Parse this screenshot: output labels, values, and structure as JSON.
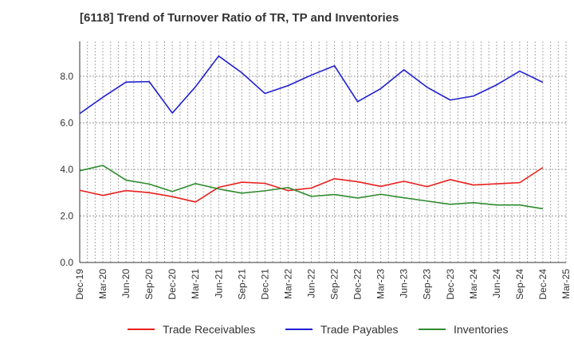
{
  "chart_data": {
    "type": "line",
    "title": "[6118]  Trend of Turnover Ratio of TR, TP and Inventories",
    "xlabel": "",
    "ylabel": "",
    "ylim": [
      0,
      9.5
    ],
    "y_ticks": [
      "0.0",
      "2.0",
      "4.0",
      "6.0",
      "8.0"
    ],
    "x_ticks": [
      "Dec-19",
      "Mar-20",
      "Jun-20",
      "Sep-20",
      "Dec-20",
      "Mar-21",
      "Jun-21",
      "Sep-21",
      "Dec-21",
      "Mar-22",
      "Jun-22",
      "Sep-22",
      "Dec-22",
      "Mar-23",
      "Jun-23",
      "Sep-23",
      "Dec-23",
      "Mar-24",
      "Jun-24",
      "Sep-24",
      "Dec-24",
      "Mar-25"
    ],
    "x": [
      "Dec-19",
      "Mar-20",
      "Jun-20",
      "Sep-20",
      "Dec-20",
      "Mar-21",
      "Jun-21",
      "Sep-21",
      "Dec-21",
      "Mar-22",
      "Jun-22",
      "Sep-22",
      "Dec-22",
      "Mar-23",
      "Jun-23",
      "Sep-23",
      "Dec-23",
      "Mar-24",
      "Jun-24",
      "Sep-24",
      "Dec-24"
    ],
    "grid": true,
    "legend_position": "bottom",
    "series": [
      {
        "name": "Trade Receivables",
        "color": "#e8201e",
        "values": [
          3.1,
          2.88,
          3.09,
          3.0,
          2.83,
          2.6,
          3.23,
          3.45,
          3.4,
          3.09,
          3.2,
          3.6,
          3.47,
          3.27,
          3.49,
          3.26,
          3.56,
          3.33,
          3.38,
          3.43,
          4.08
        ]
      },
      {
        "name": "Trade Payables",
        "color": "#1f1fd1",
        "values": [
          6.4,
          7.1,
          7.75,
          7.77,
          6.42,
          7.55,
          8.87,
          8.15,
          7.26,
          7.6,
          8.05,
          8.45,
          6.91,
          7.47,
          8.28,
          7.53,
          6.98,
          7.15,
          7.63,
          8.22,
          7.74
        ]
      },
      {
        "name": "Inventories",
        "color": "#2e8b2e",
        "values": [
          3.94,
          4.17,
          3.54,
          3.37,
          3.05,
          3.39,
          3.16,
          2.98,
          3.08,
          3.22,
          2.84,
          2.92,
          2.77,
          2.93,
          2.78,
          2.64,
          2.5,
          2.57,
          2.47,
          2.47,
          2.31
        ]
      }
    ]
  }
}
